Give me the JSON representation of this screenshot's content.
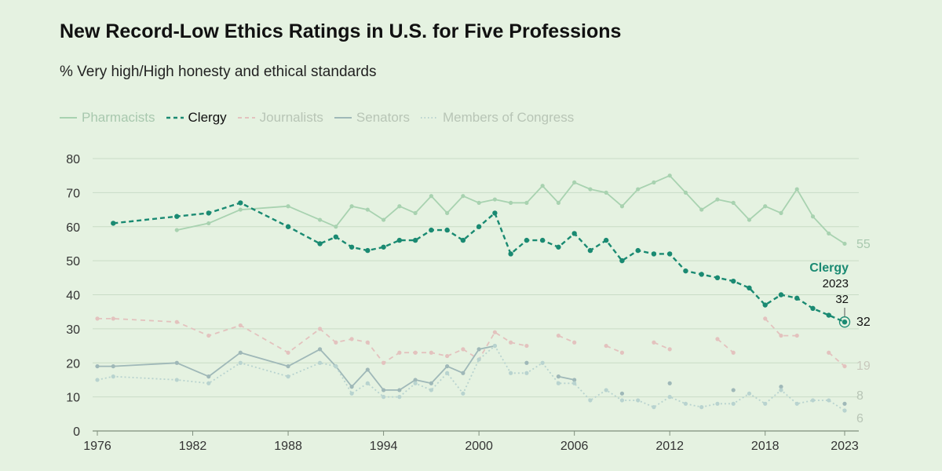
{
  "header": {
    "title": "New Record-Low Ethics Ratings in U.S. for Five Professions",
    "subtitle": "% Very high/High honesty and ethical standards"
  },
  "colors": {
    "pharmacists": "#a8d2b0",
    "clergy": "#1a8a72",
    "journalists": "#e3c2be",
    "senators": "#9fb8b8",
    "congress": "#b8d3cf",
    "grid": "#c9dcc6",
    "axis": "#333333"
  },
  "chart_data": {
    "type": "line",
    "title": "New Record-Low Ethics Ratings in U.S. for Five Professions",
    "subtitle": "% Very high/High honesty and ethical standards",
    "xlabel": "",
    "ylabel": "",
    "xlim": [
      1976,
      2023
    ],
    "ylim": [
      0,
      80
    ],
    "x_ticks": [
      1976,
      1982,
      1988,
      1994,
      2000,
      2006,
      2012,
      2018,
      2023
    ],
    "y_ticks": [
      0,
      10,
      20,
      30,
      40,
      50,
      60,
      70,
      80
    ],
    "grid": true,
    "legend_position": "top-left",
    "series": [
      {
        "name": "Pharmacists",
        "key": "pharmacists",
        "dash": "solid",
        "points": [
          [
            1981,
            59
          ],
          [
            1983,
            61
          ],
          [
            1985,
            65
          ],
          [
            1988,
            66
          ],
          [
            1990,
            62
          ],
          [
            1991,
            60
          ],
          [
            1992,
            66
          ],
          [
            1993,
            65
          ],
          [
            1994,
            62
          ],
          [
            1995,
            66
          ],
          [
            1996,
            64
          ],
          [
            1997,
            69
          ],
          [
            1998,
            64
          ],
          [
            1999,
            69
          ],
          [
            2000,
            67
          ],
          [
            2001,
            68
          ],
          [
            2002,
            67
          ],
          [
            2003,
            67
          ],
          [
            2004,
            72
          ],
          [
            2005,
            67
          ],
          [
            2006,
            73
          ],
          [
            2007,
            71
          ],
          [
            2008,
            70
          ],
          [
            2009,
            66
          ],
          [
            2010,
            71
          ],
          [
            2011,
            73
          ],
          [
            2012,
            75
          ],
          [
            2013,
            70
          ],
          [
            2014,
            65
          ],
          [
            2015,
            68
          ],
          [
            2016,
            67
          ],
          [
            2017,
            62
          ],
          [
            2018,
            66
          ],
          [
            2019,
            64
          ],
          [
            2020,
            71
          ],
          [
            2021,
            63
          ],
          [
            2022,
            58
          ],
          [
            2023,
            55
          ]
        ],
        "end_label": "55"
      },
      {
        "name": "Clergy",
        "key": "clergy",
        "dash": "dashed",
        "points": [
          [
            1977,
            61
          ],
          [
            1981,
            63
          ],
          [
            1983,
            64
          ],
          [
            1985,
            67
          ],
          [
            1988,
            60
          ],
          [
            1990,
            55
          ],
          [
            1991,
            57
          ],
          [
            1992,
            54
          ],
          [
            1993,
            53
          ],
          [
            1994,
            54
          ],
          [
            1995,
            56
          ],
          [
            1996,
            56
          ],
          [
            1997,
            59
          ],
          [
            1998,
            59
          ],
          [
            1999,
            56
          ],
          [
            2000,
            60
          ],
          [
            2001,
            64
          ],
          [
            2002,
            52
          ],
          [
            2003,
            56
          ],
          [
            2004,
            56
          ],
          [
            2005,
            54
          ],
          [
            2006,
            58
          ],
          [
            2007,
            53
          ],
          [
            2008,
            56
          ],
          [
            2009,
            50
          ],
          [
            2010,
            53
          ],
          [
            2011,
            52
          ],
          [
            2012,
            52
          ],
          [
            2013,
            47
          ],
          [
            2014,
            46
          ],
          [
            2015,
            45
          ],
          [
            2016,
            44
          ],
          [
            2017,
            42
          ],
          [
            2018,
            37
          ],
          [
            2019,
            40
          ],
          [
            2020,
            39
          ],
          [
            2021,
            36
          ],
          [
            2022,
            34
          ],
          [
            2023,
            32
          ]
        ],
        "end_label": "32"
      },
      {
        "name": "Journalists",
        "key": "journalists",
        "dash": "dashed",
        "points": [
          [
            1976,
            33
          ],
          [
            1977,
            33
          ],
          [
            1981,
            32
          ],
          [
            1983,
            28
          ],
          [
            1985,
            31
          ],
          [
            1988,
            23
          ],
          [
            1990,
            30
          ],
          [
            1991,
            26
          ],
          [
            1992,
            27
          ],
          [
            1993,
            26
          ],
          [
            1994,
            20
          ],
          [
            1995,
            23
          ],
          [
            1996,
            23
          ],
          [
            1997,
            23
          ],
          [
            1998,
            22
          ],
          [
            1999,
            24
          ],
          [
            2000,
            21
          ],
          [
            2001,
            29
          ],
          [
            2002,
            26
          ],
          [
            2003,
            25
          ],
          null,
          [
            2005,
            28
          ],
          [
            2006,
            26
          ],
          null,
          [
            2008,
            25
          ],
          [
            2009,
            23
          ],
          null,
          [
            2011,
            26
          ],
          [
            2012,
            24
          ],
          null,
          [
            2015,
            27
          ],
          [
            2016,
            23
          ],
          null,
          [
            2018,
            33
          ],
          [
            2019,
            28
          ],
          [
            2020,
            28
          ],
          null,
          [
            2022,
            23
          ],
          [
            2023,
            19
          ]
        ],
        "end_label": "19"
      },
      {
        "name": "Senators",
        "key": "senators",
        "dash": "solid",
        "points": [
          [
            1976,
            19
          ],
          [
            1977,
            19
          ],
          [
            1981,
            20
          ],
          [
            1983,
            16
          ],
          [
            1985,
            23
          ],
          [
            1988,
            19
          ],
          [
            1990,
            24
          ],
          [
            1991,
            19
          ],
          [
            1992,
            13
          ],
          [
            1993,
            18
          ],
          [
            1994,
            12
          ],
          [
            1995,
            12
          ],
          [
            1996,
            15
          ],
          [
            1997,
            14
          ],
          [
            1998,
            19
          ],
          [
            1999,
            17
          ],
          [
            2000,
            24
          ],
          [
            2001,
            25
          ],
          null,
          [
            2003,
            20
          ],
          null,
          [
            2005,
            16
          ],
          [
            2006,
            15
          ],
          null,
          [
            2009,
            11
          ],
          null,
          [
            2012,
            14
          ],
          null,
          [
            2016,
            12
          ],
          null,
          [
            2019,
            13
          ],
          null,
          [
            2023,
            8
          ]
        ],
        "end_label": "8"
      },
      {
        "name": "Members of Congress",
        "key": "congress",
        "dash": "dotted",
        "points": [
          [
            1976,
            15
          ],
          [
            1977,
            16
          ],
          [
            1981,
            15
          ],
          [
            1983,
            14
          ],
          [
            1985,
            20
          ],
          [
            1988,
            16
          ],
          [
            1990,
            20
          ],
          [
            1991,
            19
          ],
          [
            1992,
            11
          ],
          [
            1993,
            14
          ],
          [
            1994,
            10
          ],
          [
            1995,
            10
          ],
          [
            1996,
            14
          ],
          [
            1997,
            12
          ],
          [
            1998,
            17
          ],
          [
            1999,
            11
          ],
          [
            2000,
            21
          ],
          [
            2001,
            25
          ],
          [
            2002,
            17
          ],
          [
            2003,
            17
          ],
          [
            2004,
            20
          ],
          [
            2005,
            14
          ],
          [
            2006,
            14
          ],
          [
            2007,
            9
          ],
          [
            2008,
            12
          ],
          [
            2009,
            9
          ],
          [
            2010,
            9
          ],
          [
            2011,
            7
          ],
          [
            2012,
            10
          ],
          [
            2013,
            8
          ],
          [
            2014,
            7
          ],
          [
            2015,
            8
          ],
          [
            2016,
            8
          ],
          [
            2017,
            11
          ],
          [
            2018,
            8
          ],
          [
            2019,
            12
          ],
          [
            2020,
            8
          ],
          [
            2021,
            9
          ],
          [
            2022,
            9
          ],
          [
            2023,
            6
          ]
        ],
        "end_label": "6"
      }
    ],
    "annotation": {
      "series": "Clergy",
      "label": "Clergy",
      "year": "2023",
      "value": "32"
    }
  }
}
